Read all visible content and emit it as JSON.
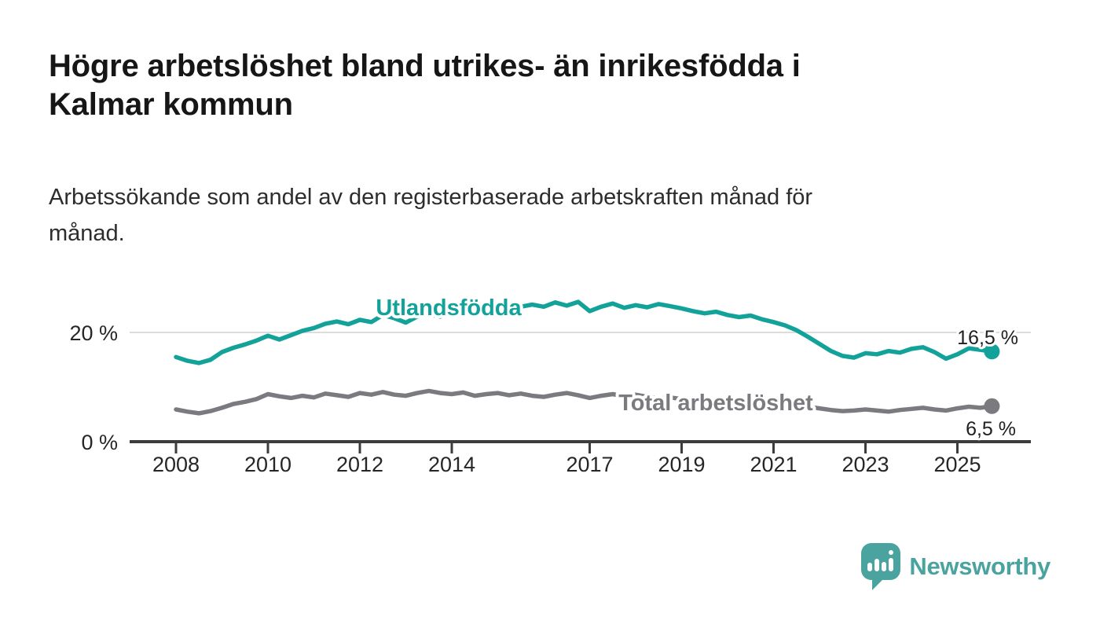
{
  "header": {
    "title": "Högre arbetslöshet bland utrikes- än inrikesfödda i Kalmar kommun",
    "title_line1": "Högre arbetslöshet bland utrikes- än inrikesfödda i",
    "title_line2": "Kalmar kommun",
    "subtitle": "Arbetssökande som andel av den registerbaserade arbetskraften månad för månad.",
    "subtitle_line1": "Arbetssökande som andel av den registerbaserade arbetskraften månad för",
    "subtitle_line2": "månad."
  },
  "chart_data": {
    "type": "line",
    "title": "Högre arbetslöshet bland utrikes- än inrikesfödda i Kalmar kommun",
    "subtitle": "Arbetssökande som andel av den registerbaserade arbetskraften månad för månad.",
    "grid": "horizontal-only",
    "legend_position": "inline-labels-on-lines",
    "x_axis": {
      "range": [
        2007.0,
        2026.5
      ],
      "ticks": [
        2008,
        2010,
        2012,
        2014,
        2017,
        2019,
        2021,
        2023,
        2025
      ]
    },
    "y_axis": {
      "range": [
        0,
        27.5
      ],
      "unit": "%",
      "ticks": [
        {
          "value": 0,
          "label": "0 %"
        },
        {
          "value": 20,
          "label": "20 %"
        }
      ],
      "gridlines": [
        20
      ]
    },
    "series": [
      {
        "id": "utlandsfodda",
        "name": "Utlandsfödda",
        "color": "#12a29a",
        "start_year": 2008,
        "step_years": 0.25,
        "end_value": 16.5,
        "end_label": "16,5 %",
        "values": [
          15.5,
          14.8,
          14.4,
          15.0,
          16.4,
          17.2,
          17.8,
          18.5,
          19.4,
          18.7,
          19.5,
          20.3,
          20.8,
          21.6,
          22.0,
          21.5,
          22.3,
          21.9,
          23.2,
          22.6,
          21.8,
          22.9,
          23.3,
          22.9,
          23.5,
          24.3,
          23.2,
          24.1,
          24.5,
          24.1,
          24.7,
          25.1,
          24.7,
          25.5,
          24.9,
          25.6,
          23.9,
          24.7,
          25.3,
          24.5,
          25.0,
          24.6,
          25.2,
          24.8,
          24.4,
          23.9,
          23.5,
          23.8,
          23.2,
          22.8,
          23.1,
          22.4,
          21.9,
          21.3,
          20.4,
          19.2,
          17.9,
          16.6,
          15.7,
          15.4,
          16.2,
          16.0,
          16.6,
          16.3,
          17.0,
          17.3,
          16.4,
          15.2,
          16.0,
          17.1,
          16.8,
          16.5
        ]
      },
      {
        "id": "total-arbetsloshet",
        "name": "Total arbetslöshet",
        "color": "#7b7b7f",
        "start_year": 2008,
        "step_years": 0.25,
        "end_value": 6.5,
        "end_label": "6,5 %",
        "values": [
          5.9,
          5.5,
          5.2,
          5.6,
          6.2,
          6.9,
          7.3,
          7.8,
          8.7,
          8.3,
          8.0,
          8.4,
          8.1,
          8.8,
          8.5,
          8.2,
          8.9,
          8.6,
          9.1,
          8.6,
          8.4,
          8.9,
          9.3,
          8.9,
          8.7,
          9.0,
          8.4,
          8.7,
          8.9,
          8.5,
          8.8,
          8.4,
          8.2,
          8.6,
          8.9,
          8.5,
          8.0,
          8.4,
          8.7,
          8.3,
          8.6,
          8.2,
          7.9,
          8.1,
          7.8,
          7.5,
          7.7,
          7.3,
          7.5,
          8.1,
          7.8,
          7.5,
          7.3,
          7.0,
          6.7,
          6.4,
          6.1,
          5.8,
          5.6,
          5.7,
          5.9,
          5.7,
          5.5,
          5.8,
          6.0,
          6.2,
          5.9,
          5.7,
          6.1,
          6.4,
          6.2,
          6.5
        ]
      }
    ],
    "colors": {
      "gridline": "#dcdcdc",
      "axis": "#3c3c3c",
      "tick_text": "#262626",
      "value_label_text": "#1f1f1f"
    }
  },
  "footer": {
    "brand": "Newsworthy",
    "brand_color": "#4aa39e",
    "logo_icon": "speech-bubble-bar-chart-icon"
  }
}
